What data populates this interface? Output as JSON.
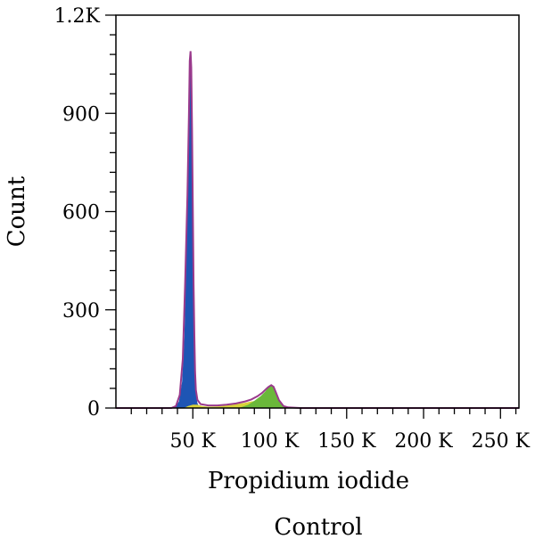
{
  "chart_data": {
    "type": "area",
    "xlabel": "Propidium iodide",
    "ylabel": "Count",
    "caption": "Control",
    "xlim": [
      0,
      262000
    ],
    "ylim": [
      0,
      1200
    ],
    "x_ticks": [
      {
        "value": 50000,
        "label": "50 K"
      },
      {
        "value": 100000,
        "label": "100 K"
      },
      {
        "value": 150000,
        "label": "150 K"
      },
      {
        "value": 200000,
        "label": "200 K"
      },
      {
        "value": 250000,
        "label": "250 K"
      }
    ],
    "y_ticks": [
      {
        "value": 0,
        "label": "0"
      },
      {
        "value": 300,
        "label": "300"
      },
      {
        "value": 600,
        "label": "600"
      },
      {
        "value": 900,
        "label": "900"
      },
      {
        "value": 1200,
        "label": "1.2K"
      }
    ],
    "x_minor_step": 10000,
    "y_minor_step": 60,
    "grid": false,
    "legend": "none",
    "series": [
      {
        "color": "#1e55b4",
        "x": [
          38000,
          41000,
          43000,
          44500,
          45500,
          46500,
          47500,
          48000,
          48500,
          49000,
          49500,
          50000,
          50500,
          51000,
          51500,
          52000,
          53000,
          54000,
          56000
        ],
        "y": [
          0,
          20,
          80,
          220,
          420,
          650,
          900,
          1060,
          1090,
          1040,
          850,
          600,
          380,
          220,
          110,
          50,
          15,
          5,
          0
        ]
      },
      {
        "color": "#d8d23a",
        "x": [
          44000,
          47000,
          50000,
          53000,
          56000,
          60000,
          66000,
          72000,
          78000,
          84000,
          88000,
          92000,
          95000
        ],
        "y": [
          0,
          6,
          10,
          10,
          6,
          4,
          5,
          8,
          12,
          16,
          20,
          22,
          20
        ]
      },
      {
        "color": "#6ab83a",
        "x": [
          80000,
          86000,
          90000,
          94000,
          97000,
          99000,
          101000,
          102500,
          104000,
          106000,
          109000,
          112000
        ],
        "y": [
          0,
          10,
          22,
          36,
          50,
          62,
          70,
          65,
          48,
          24,
          5,
          0
        ]
      }
    ],
    "outline": {
      "color": "#9a3a8c",
      "x": [
        0,
        36000,
        39000,
        41500,
        43500,
        45000,
        46500,
        47500,
        48000,
        48500,
        49000,
        49500,
        50000,
        50500,
        51000,
        51500,
        52000,
        53000,
        55000,
        60000,
        66000,
        72000,
        78000,
        84000,
        88000,
        92000,
        95000,
        97000,
        99000,
        101000,
        102500,
        104000,
        106000,
        109000,
        112000,
        120000,
        262000
      ],
      "y": [
        0,
        0,
        6,
        40,
        150,
        380,
        650,
        900,
        1060,
        1090,
        1040,
        850,
        600,
        380,
        220,
        110,
        55,
        25,
        12,
        8,
        8,
        10,
        14,
        20,
        26,
        36,
        46,
        55,
        64,
        70,
        65,
        48,
        24,
        6,
        2,
        0,
        0
      ]
    }
  }
}
